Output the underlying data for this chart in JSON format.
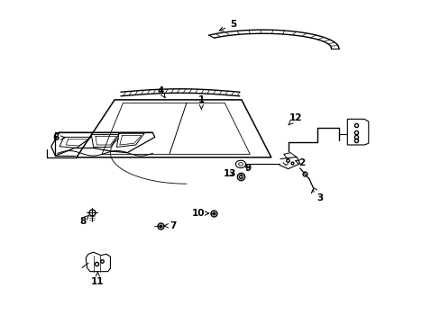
{
  "background_color": "#ffffff",
  "line_color": "#000000",
  "fig_width": 4.89,
  "fig_height": 3.6,
  "dpi": 100,
  "label_configs": {
    "1": [
      0.455,
      0.695,
      0.455,
      0.66
    ],
    "2": [
      0.69,
      0.5,
      0.672,
      0.505
    ],
    "3": [
      0.735,
      0.385,
      0.718,
      0.415
    ],
    "4": [
      0.36,
      0.73,
      0.37,
      0.705
    ],
    "5": [
      0.53,
      0.94,
      0.49,
      0.92
    ],
    "6": [
      0.118,
      0.58,
      0.148,
      0.58
    ],
    "7": [
      0.385,
      0.295,
      0.36,
      0.295
    ],
    "8": [
      0.18,
      0.31,
      0.192,
      0.33
    ],
    "9": [
      0.565,
      0.48,
      0.548,
      0.492
    ],
    "10": [
      0.45,
      0.335,
      0.48,
      0.335
    ],
    "11": [
      0.21,
      0.115,
      0.21,
      0.145
    ],
    "12": [
      0.68,
      0.64,
      0.658,
      0.615
    ],
    "13": [
      0.525,
      0.465,
      0.548,
      0.48
    ]
  }
}
